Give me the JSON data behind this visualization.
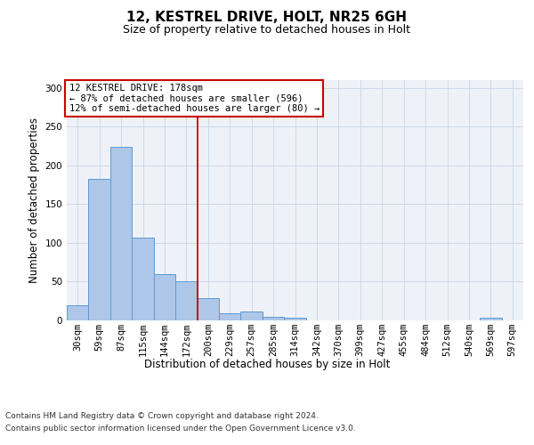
{
  "title1": "12, KESTREL DRIVE, HOLT, NR25 6GH",
  "title2": "Size of property relative to detached houses in Holt",
  "xlabel": "Distribution of detached houses by size in Holt",
  "ylabel": "Number of detached properties",
  "bar_labels": [
    "30sqm",
    "59sqm",
    "87sqm",
    "115sqm",
    "144sqm",
    "172sqm",
    "200sqm",
    "229sqm",
    "257sqm",
    "285sqm",
    "314sqm",
    "342sqm",
    "370sqm",
    "399sqm",
    "427sqm",
    "455sqm",
    "484sqm",
    "512sqm",
    "540sqm",
    "569sqm",
    "597sqm"
  ],
  "bar_values": [
    20,
    183,
    224,
    107,
    60,
    50,
    29,
    9,
    12,
    5,
    3,
    0,
    0,
    0,
    0,
    0,
    0,
    0,
    0,
    3,
    0
  ],
  "bar_color": "#aec6e8",
  "bar_edge_color": "#5b9bd5",
  "vline_x": 5.5,
  "vline_color": "#cc0000",
  "annotation_title": "12 KESTREL DRIVE: 178sqm",
  "annotation_line1": "← 87% of detached houses are smaller (596)",
  "annotation_line2": "12% of semi-detached houses are larger (80) →",
  "annotation_box_color": "#ffffff",
  "annotation_box_edge": "#cc0000",
  "grid_color": "#d0d8e8",
  "background_color": "#eef2f8",
  "footer1": "Contains HM Land Registry data © Crown copyright and database right 2024.",
  "footer2": "Contains public sector information licensed under the Open Government Licence v3.0.",
  "ylim": [
    0,
    310
  ],
  "yticks": [
    0,
    50,
    100,
    150,
    200,
    250,
    300
  ],
  "title1_fontsize": 11,
  "title2_fontsize": 9,
  "ylabel_fontsize": 8.5,
  "tick_fontsize": 7.5,
  "annotation_fontsize": 7.5,
  "footer_fontsize": 6.5
}
